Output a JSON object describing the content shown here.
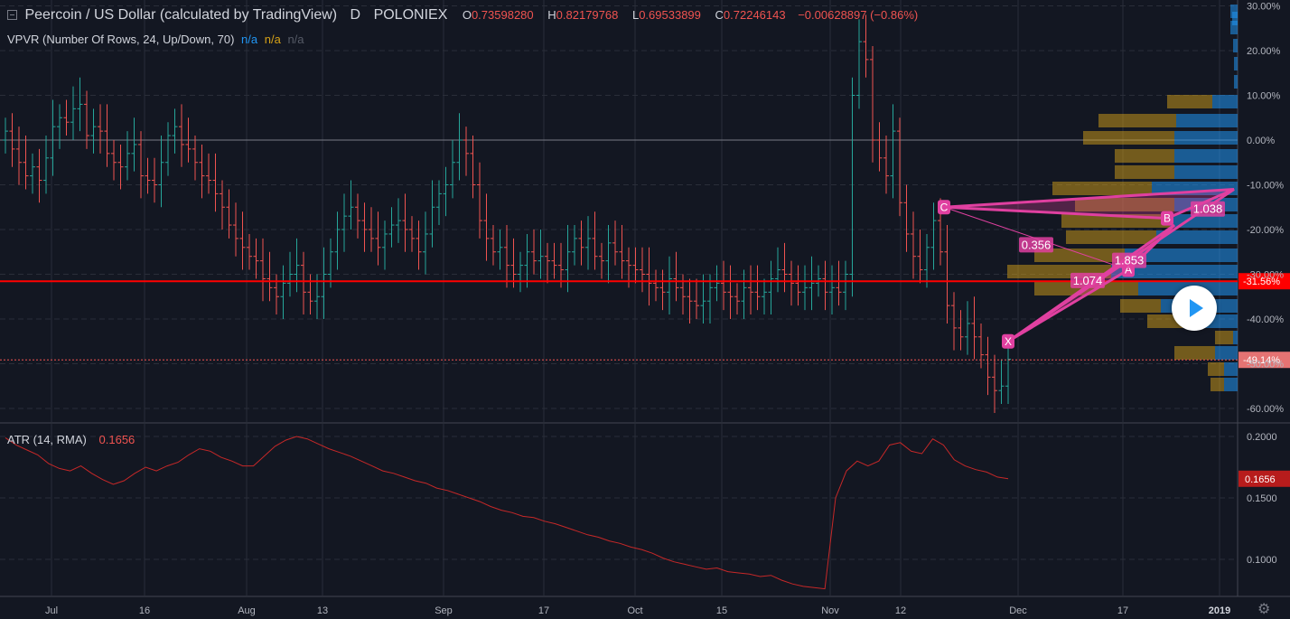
{
  "header": {
    "symbol": "Peercoin / US Dollar (calculated by TradingView)",
    "interval": "D",
    "exchange": "POLONIEX",
    "open_label": "O",
    "open": "0.73598280",
    "high_label": "H",
    "high": "0.82179768",
    "low_label": "L",
    "low": "0.69533899",
    "close_label": "C",
    "close": "0.72246143",
    "change": "−0.00628897 (−0.86%)"
  },
  "vpvr": {
    "label": "VPVR (Number Of Rows, 24, Up/Down, 70)",
    "v1": "n/a",
    "v2": "n/a",
    "v3": "n/a"
  },
  "atr": {
    "label": "ATR (14, RMA)",
    "value": "0.1656"
  },
  "colors": {
    "up": "#26a69a",
    "down": "#ef5350",
    "bg": "#131722",
    "grid": "#2a2e39",
    "pattern": "#e040a0",
    "vp_up": "#2196f3",
    "vp_down": "#d4a017"
  },
  "chart_data": [
    {
      "type": "ohlc",
      "y_scale": "percent",
      "ylim": [
        -62,
        30
      ],
      "y_ticks": [
        "30.00%",
        "20.00%",
        "10.00%",
        "0.00%",
        "-10.00%",
        "-20.00%",
        "-30.00%",
        "-40.00%",
        "-50.00%",
        "-60.00%"
      ],
      "x_ticks": [
        "Jul",
        "16",
        "Aug",
        "13",
        "Sep",
        "17",
        "Oct",
        "15",
        "Nov",
        "12",
        "Dec",
        "17",
        "2019"
      ],
      "close_percent": [
        2,
        -2,
        -5,
        -8,
        -6,
        -9,
        -4,
        3,
        5,
        4,
        7,
        8,
        1,
        3,
        2,
        -3,
        -5,
        -6,
        -3,
        -1,
        -8,
        -9,
        -10,
        -5,
        1,
        3,
        -1,
        -2,
        -5,
        -8,
        -9,
        -12,
        -15,
        -19,
        -22,
        -24,
        -26,
        -27,
        -31,
        -33,
        -35,
        -32,
        -30,
        -28,
        -34,
        -36,
        -35,
        -30,
        -25,
        -20,
        -17,
        -15,
        -18,
        -20,
        -22,
        -24,
        -21,
        -19,
        -18,
        -20,
        -22,
        -25,
        -21,
        -15,
        -12,
        -10,
        -5,
        0,
        -3,
        -10,
        -18,
        -22,
        -25,
        -24,
        -28,
        -30,
        -28,
        -25,
        -27,
        -26,
        -27,
        -28,
        -29,
        -25,
        -22,
        -24,
        -22,
        -26,
        -27,
        -23,
        -25,
        -27,
        -28,
        -29,
        -30,
        -32,
        -33,
        -34,
        -31,
        -33,
        -35,
        -36,
        -37,
        -36,
        -33,
        -32,
        -34,
        -35,
        -36,
        -33,
        -34,
        -35,
        -34,
        -31,
        -29,
        -30,
        -32,
        -34,
        -33,
        -32,
        -31,
        -34,
        -33,
        -34,
        -30,
        10,
        22,
        18,
        0,
        -4,
        -8,
        2,
        -14,
        -21,
        -26,
        -29,
        -24,
        -18,
        -25,
        -37,
        -42,
        -44,
        -41,
        -44,
        -48,
        -53,
        -56,
        -55,
        -49
      ],
      "price_lines": [
        {
          "value": -31.56,
          "label": "-31.56%"
        },
        {
          "value": -49.14,
          "label": "-49.14%"
        }
      ],
      "pattern": {
        "points": [
          {
            "name": "X",
            "value": -45
          },
          {
            "name": "A",
            "value": -29
          },
          {
            "name": "B",
            "value": -17.5
          },
          {
            "name": "C",
            "value": -15
          }
        ],
        "ratios": [
          "0.356",
          "1.853",
          "1.074",
          "1.038"
        ]
      }
    },
    {
      "type": "line",
      "series": [
        {
          "values": [
            0.199,
            0.193,
            0.189,
            0.185,
            0.178,
            0.174,
            0.172,
            0.176,
            0.17,
            0.165,
            0.161,
            0.164,
            0.17,
            0.175,
            0.172,
            0.176,
            0.179,
            0.185,
            0.19,
            0.188,
            0.183,
            0.18,
            0.176,
            0.176,
            0.184,
            0.192,
            0.197,
            0.2,
            0.198,
            0.194,
            0.19,
            0.187,
            0.184,
            0.18,
            0.176,
            0.172,
            0.17,
            0.167,
            0.164,
            0.162,
            0.158,
            0.156,
            0.153,
            0.15,
            0.147,
            0.143,
            0.14,
            0.138,
            0.135,
            0.134,
            0.131,
            0.129,
            0.126,
            0.123,
            0.12,
            0.118,
            0.115,
            0.113,
            0.11,
            0.108,
            0.105,
            0.101,
            0.098,
            0.096,
            0.094,
            0.092,
            0.093,
            0.09,
            0.089,
            0.088,
            0.086,
            0.087,
            0.083,
            0.08,
            0.078,
            0.077,
            0.076,
            0.15,
            0.172,
            0.18,
            0.176,
            0.18,
            0.193,
            0.195,
            0.188,
            0.186,
            0.198,
            0.193,
            0.181,
            0.176,
            0.173,
            0.171,
            0.167,
            0.1656
          ]
        }
      ],
      "ylim": [
        0.075,
        0.205
      ],
      "y_ticks": [
        "0.2000",
        "0.1500",
        "0.1000"
      ],
      "last_value_label": "0.1656"
    }
  ]
}
